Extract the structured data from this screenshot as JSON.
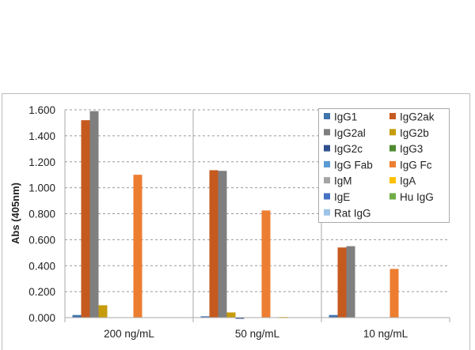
{
  "chart_data": {
    "type": "bar",
    "title": "",
    "xlabel": "",
    "ylabel": "Abs (405nm)",
    "ylim": [
      0,
      1.6
    ],
    "yticks": [
      "0.000",
      "0.200",
      "0.400",
      "0.600",
      "0.800",
      "1.000",
      "1.200",
      "1.400",
      "1.600"
    ],
    "grid": "horizontal dashed",
    "legend_position": "top-right",
    "categories": [
      "200 ng/mL",
      "50 ng/mL",
      "10 ng/mL"
    ],
    "series": [
      {
        "name": "IgG1",
        "color": "#3f74ad",
        "values": [
          0.02,
          0.01,
          0.02
        ]
      },
      {
        "name": "IgG2ak",
        "color": "#c55a1f",
        "values": [
          1.52,
          1.135,
          0.54
        ]
      },
      {
        "name": "IgG2al",
        "color": "#7f7f7f",
        "values": [
          1.59,
          1.13,
          0.55
        ]
      },
      {
        "name": "IgG2b",
        "color": "#c69c0c",
        "values": [
          0.095,
          0.04,
          0.0
        ]
      },
      {
        "name": "IgG2c",
        "color": "#2f4f8f",
        "values": [
          0.0,
          -0.004,
          0.0
        ]
      },
      {
        "name": "IgG3",
        "color": "#4e8a30",
        "values": [
          0.0,
          0.0,
          0.0
        ]
      },
      {
        "name": "IgG Fab",
        "color": "#5b9bd5",
        "values": [
          0.0,
          0.0,
          0.0
        ]
      },
      {
        "name": "IgG Fc",
        "color": "#ed7d31",
        "values": [
          1.1,
          0.825,
          0.375
        ]
      },
      {
        "name": "IgM",
        "color": "#a5a5a5",
        "values": [
          0.0,
          0.0,
          0.0
        ]
      },
      {
        "name": "IgA",
        "color": "#ffc000",
        "values": [
          0.0,
          0.005,
          0.0
        ]
      },
      {
        "name": "IgE",
        "color": "#4472c4",
        "values": [
          0.0,
          0.0,
          0.0
        ]
      },
      {
        "name": "Hu IgG",
        "color": "#70ad47",
        "values": [
          0.0,
          0.0,
          0.0
        ]
      },
      {
        "name": "Rat IgG",
        "color": "#9dc3e6",
        "values": [
          0.0,
          0.0,
          0.0
        ]
      }
    ]
  }
}
